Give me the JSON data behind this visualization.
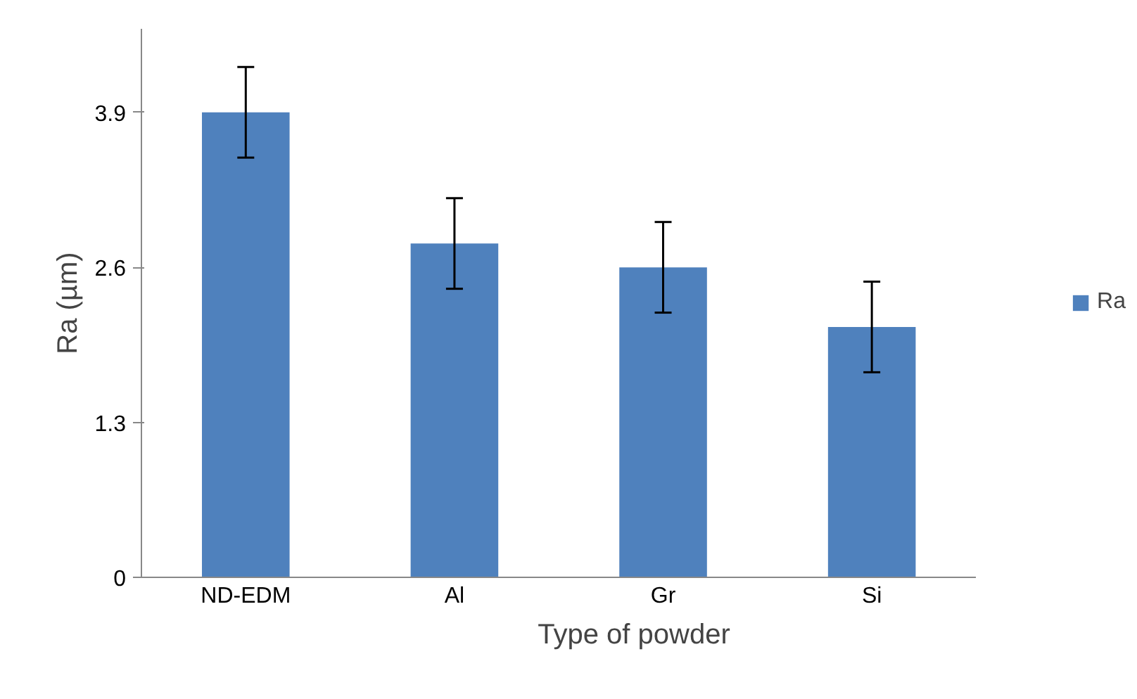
{
  "chart_data": {
    "type": "bar",
    "xlabel": "Type of powder",
    "ylabel": "Ra (µm)",
    "categories": [
      "ND-EDM",
      "Al",
      "Gr",
      "Si"
    ],
    "series": [
      {
        "name": "Ra",
        "color": "#4f81bd",
        "values": [
          3.9,
          2.8,
          2.6,
          2.1
        ],
        "errors": [
          0.38,
          0.38,
          0.38,
          0.38
        ]
      }
    ],
    "ylim": [
      0,
      4.6
    ],
    "yticks": [
      0,
      1.3,
      2.6,
      3.9
    ],
    "grid": false,
    "legend": "right"
  }
}
